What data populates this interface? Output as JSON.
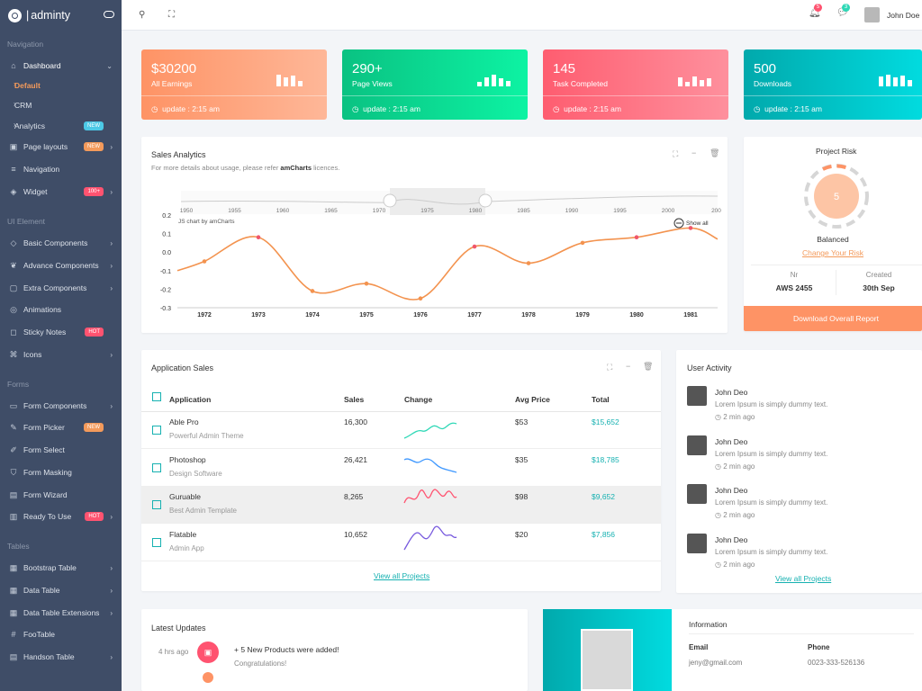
{
  "brand": {
    "name": "adminty",
    "sep": "|"
  },
  "sidebar": {
    "sections": {
      "nav": "Navigation",
      "ui": "UI Element",
      "forms": "Forms",
      "tables": "Tables"
    },
    "items": {
      "dashboard": "Dashboard",
      "default": "Default",
      "crm": "CRM",
      "analytics": "Analytics",
      "page_layouts": "Page layouts",
      "navigation": "Navigation",
      "widget": "Widget",
      "basic": "Basic Components",
      "advance": "Advance Components",
      "extra": "Extra Components",
      "animations": "Animations",
      "sticky": "Sticky Notes",
      "icons": "Icons",
      "form_components": "Form Components",
      "form_picker": "Form Picker",
      "form_select": "Form Select",
      "form_masking": "Form Masking",
      "form_wizard": "Form Wizard",
      "ready": "Ready To Use",
      "bootstrap_table": "Bootstrap Table",
      "data_table": "Data Table",
      "dt_ext": "Data Table Extensions",
      "footable": "FooTable",
      "handson": "Handson Table"
    },
    "badges": {
      "analytics": "NEW",
      "page_layouts": "NEW",
      "widget": "100+",
      "sticky": "HOT",
      "form_picker": "NEW",
      "ready": "HOT"
    }
  },
  "topbar": {
    "notif1": "5",
    "notif2": "3",
    "user": "John Doe"
  },
  "stats": [
    {
      "value": "$30200",
      "label": "All Earnings",
      "update": "update : 2:15 am"
    },
    {
      "value": "290+",
      "label": "Page Views",
      "update": "update : 2:15 am"
    },
    {
      "value": "145",
      "label": "Task Completed",
      "update": "update : 2:15 am"
    },
    {
      "value": "500",
      "label": "Downloads",
      "update": "update : 2:15 am"
    }
  ],
  "sales": {
    "title": "Sales Analytics",
    "sub_prefix": "For more details about usage, please refer ",
    "sub_link": "amCharts",
    "sub_suffix": " licences.",
    "credit": "JS chart by amCharts",
    "show_all": "Show all"
  },
  "chart_data": {
    "type": "line",
    "x": [
      1971.5,
      1972,
      1973,
      1974,
      1975,
      1976,
      1977,
      1978,
      1979,
      1980,
      1981,
      1981.5
    ],
    "values": [
      -0.1,
      -0.05,
      0.08,
      -0.21,
      -0.17,
      -0.25,
      0.03,
      -0.06,
      0.05,
      0.08,
      0.13,
      0.07
    ],
    "xticks": [
      "1972",
      "1973",
      "1974",
      "1975",
      "1976",
      "1977",
      "1978",
      "1979",
      "1980",
      "1981"
    ],
    "yticks": [
      "0.2",
      "0.1",
      "0.0",
      "-0.1",
      "-0.2",
      "-0.3"
    ],
    "ylim": [
      -0.3,
      0.2
    ],
    "scroll_ticks": [
      "1950",
      "1955",
      "1960",
      "1965",
      "1970",
      "1975",
      "1980",
      "1985",
      "1990",
      "1995",
      "2000",
      "200"
    ],
    "line_color": "#f3934f"
  },
  "risk": {
    "title": "Project Risk",
    "score": "5",
    "status": "Balanced",
    "link": "Change Your Risk",
    "nr_label": "Nr",
    "nr_value": "AWS 2455",
    "created_label": "Created",
    "created_value": "30th Sep",
    "button": "Download Overall Report"
  },
  "apps": {
    "title": "Application Sales",
    "headers": {
      "app": "Application",
      "sales": "Sales",
      "change": "Change",
      "avg": "Avg Price",
      "total": "Total"
    },
    "rows": [
      {
        "name": "Able Pro",
        "desc": "Powerful Admin Theme",
        "sales": "16,300",
        "avg": "$53",
        "total": "$15,652",
        "color": "#2ed8b6"
      },
      {
        "name": "Photoshop",
        "desc": "Design Software",
        "sales": "26,421",
        "avg": "$35",
        "total": "$18,785",
        "color": "#4099ff"
      },
      {
        "name": "Guruable",
        "desc": "Best Admin Template",
        "sales": "8,265",
        "avg": "$98",
        "total": "$9,652",
        "color": "#ff5370"
      },
      {
        "name": "Flatable",
        "desc": "Admin App",
        "sales": "10,652",
        "avg": "$20",
        "total": "$7,856",
        "color": "#7759de"
      }
    ],
    "view_all": "View all Projects"
  },
  "activity": {
    "title": "User Activity",
    "items": [
      {
        "name": "John Deo",
        "text": "Lorem Ipsum is simply dummy text.",
        "time": "2 min ago"
      },
      {
        "name": "John Deo",
        "text": "Lorem Ipsum is simply dummy text.",
        "time": "2 min ago"
      },
      {
        "name": "John Deo",
        "text": "Lorem Ipsum is simply dummy text.",
        "time": "2 min ago"
      },
      {
        "name": "John Deo",
        "text": "Lorem Ipsum is simply dummy text.",
        "time": "2 min ago"
      }
    ],
    "view_all": "View all Projects"
  },
  "updates": {
    "title": "Latest Updates",
    "time": "4 hrs ago",
    "text": "+ 5 New Products were added!",
    "sub": "Congratulations!"
  },
  "info": {
    "title": "Information",
    "email_label": "Email",
    "email": "jeny@gmail.com",
    "phone_label": "Phone",
    "phone": "0023-333-526136"
  }
}
